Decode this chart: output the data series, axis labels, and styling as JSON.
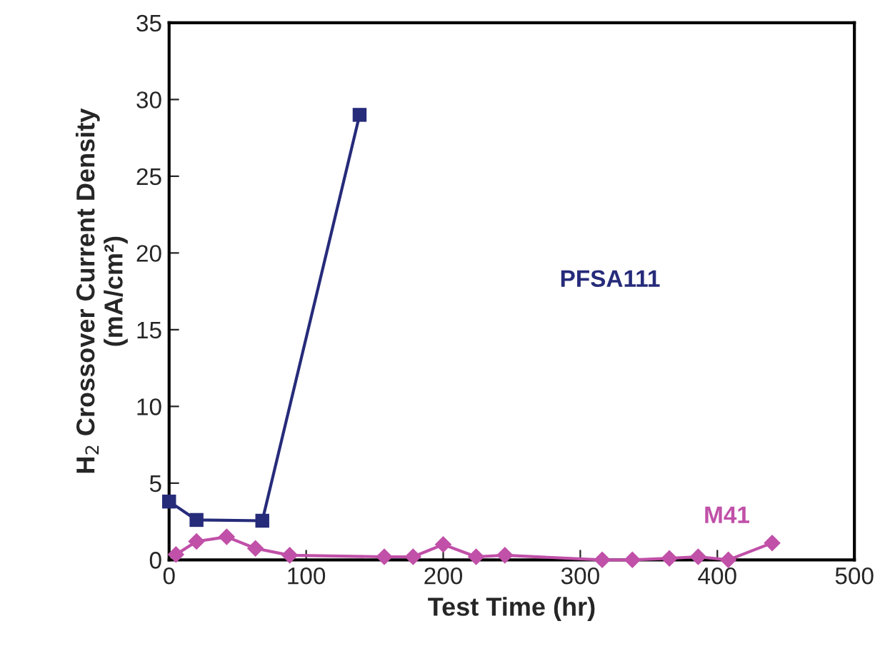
{
  "chart_data": {
    "type": "line",
    "xlabel": "Test Time (hr)",
    "ylabel": "H$_{2}$ Crossover Current Density\n(mA/cm²)",
    "xlim": [
      0,
      500
    ],
    "xticks": [
      0,
      100,
      200,
      300,
      400,
      500
    ],
    "ylim": [
      0,
      35
    ],
    "yticks": [
      0,
      5,
      10,
      15,
      20,
      25,
      30,
      35
    ],
    "grid": false,
    "legend": false,
    "series": [
      {
        "name": "PFSA111",
        "color": "#262b7a",
        "marker": "square",
        "x": [
          0,
          20,
          68,
          139
        ],
        "values": [
          3.8,
          2.6,
          2.55,
          29.0
        ]
      },
      {
        "name": "M41",
        "color": "#c050a8",
        "marker": "diamond",
        "x": [
          5,
          20,
          42,
          63,
          88,
          157,
          178,
          200,
          224,
          245,
          316,
          338,
          365,
          386,
          408,
          440
        ],
        "values": [
          0.35,
          1.2,
          1.5,
          0.75,
          0.3,
          0.2,
          0.2,
          1.0,
          0.2,
          0.3,
          0,
          0,
          0.1,
          0.2,
          0,
          1.1
        ]
      }
    ]
  }
}
